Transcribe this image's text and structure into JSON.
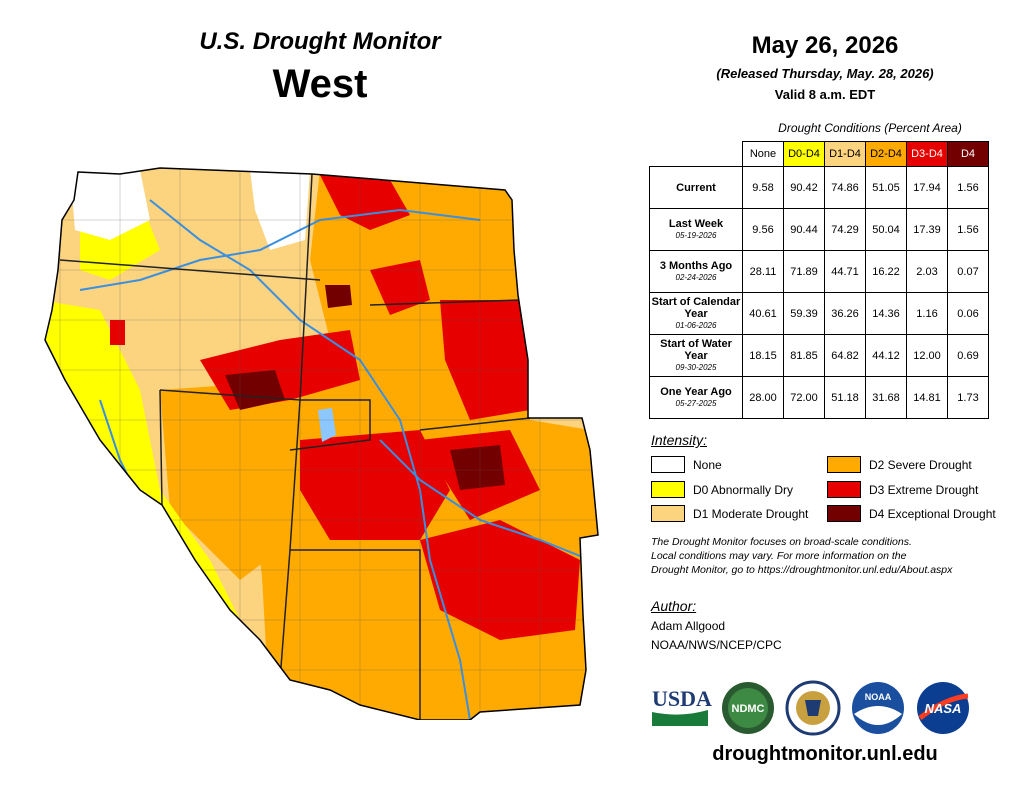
{
  "header": {
    "product": "U.S. Drought Monitor",
    "region": "West",
    "date": "May 26, 2026",
    "released": "(Released Thursday, May. 28, 2026)",
    "valid": "Valid 8 a.m. EDT"
  },
  "table": {
    "caption": "Drought Conditions (Percent Area)",
    "columns": [
      "None",
      "D0-D4",
      "D1-D4",
      "D2-D4",
      "D3-D4",
      "D4"
    ],
    "column_colors": [
      "#ffffff",
      "#ffff00",
      "#fcd37f",
      "#ffaa00",
      "#e60000",
      "#730000"
    ],
    "rows": [
      {
        "label": "Current",
        "date": "",
        "values": [
          "9.58",
          "90.42",
          "74.86",
          "51.05",
          "17.94",
          "1.56"
        ]
      },
      {
        "label": "Last Week",
        "date": "05-19-2026",
        "values": [
          "9.56",
          "90.44",
          "74.29",
          "50.04",
          "17.39",
          "1.56"
        ]
      },
      {
        "label": "3 Months Ago",
        "date": "02-24-2026",
        "values": [
          "28.11",
          "71.89",
          "44.71",
          "16.22",
          "2.03",
          "0.07"
        ]
      },
      {
        "label": "Start of Calendar Year",
        "date": "01-06-2026",
        "values": [
          "40.61",
          "59.39",
          "36.26",
          "14.36",
          "1.16",
          "0.06"
        ]
      },
      {
        "label": "Start of Water Year",
        "date": "09-30-2025",
        "values": [
          "18.15",
          "81.85",
          "64.82",
          "44.12",
          "12.00",
          "0.69"
        ]
      },
      {
        "label": "One Year Ago",
        "date": "05-27-2025",
        "values": [
          "28.00",
          "72.00",
          "51.18",
          "31.68",
          "14.81",
          "1.73"
        ]
      }
    ]
  },
  "legend": {
    "title": "Intensity:",
    "items": [
      {
        "label": "None",
        "color": "#ffffff"
      },
      {
        "label": "D0 Abnormally Dry",
        "color": "#ffff00"
      },
      {
        "label": "D1 Moderate Drought",
        "color": "#fcd37f"
      },
      {
        "label": "D2 Severe Drought",
        "color": "#ffaa00"
      },
      {
        "label": "D3 Extreme Drought",
        "color": "#e60000"
      },
      {
        "label": "D4 Exceptional Drought",
        "color": "#730000"
      }
    ]
  },
  "note": {
    "line1": "The Drought Monitor focuses on broad-scale conditions.",
    "line2": "Local conditions may vary. For more information on the",
    "line3": "Drought Monitor, go to https://droughtmonitor.unl.edu/About.aspx"
  },
  "author": {
    "title": "Author:",
    "name": "Adam Allgood",
    "org": "NOAA/NWS/NCEP/CPC"
  },
  "logos": {
    "usda": "USDA",
    "ndmc": "NDMC",
    "noaa": "NOAA",
    "nasa": "NASA"
  },
  "url": "droughtmonitor.unl.edu"
}
